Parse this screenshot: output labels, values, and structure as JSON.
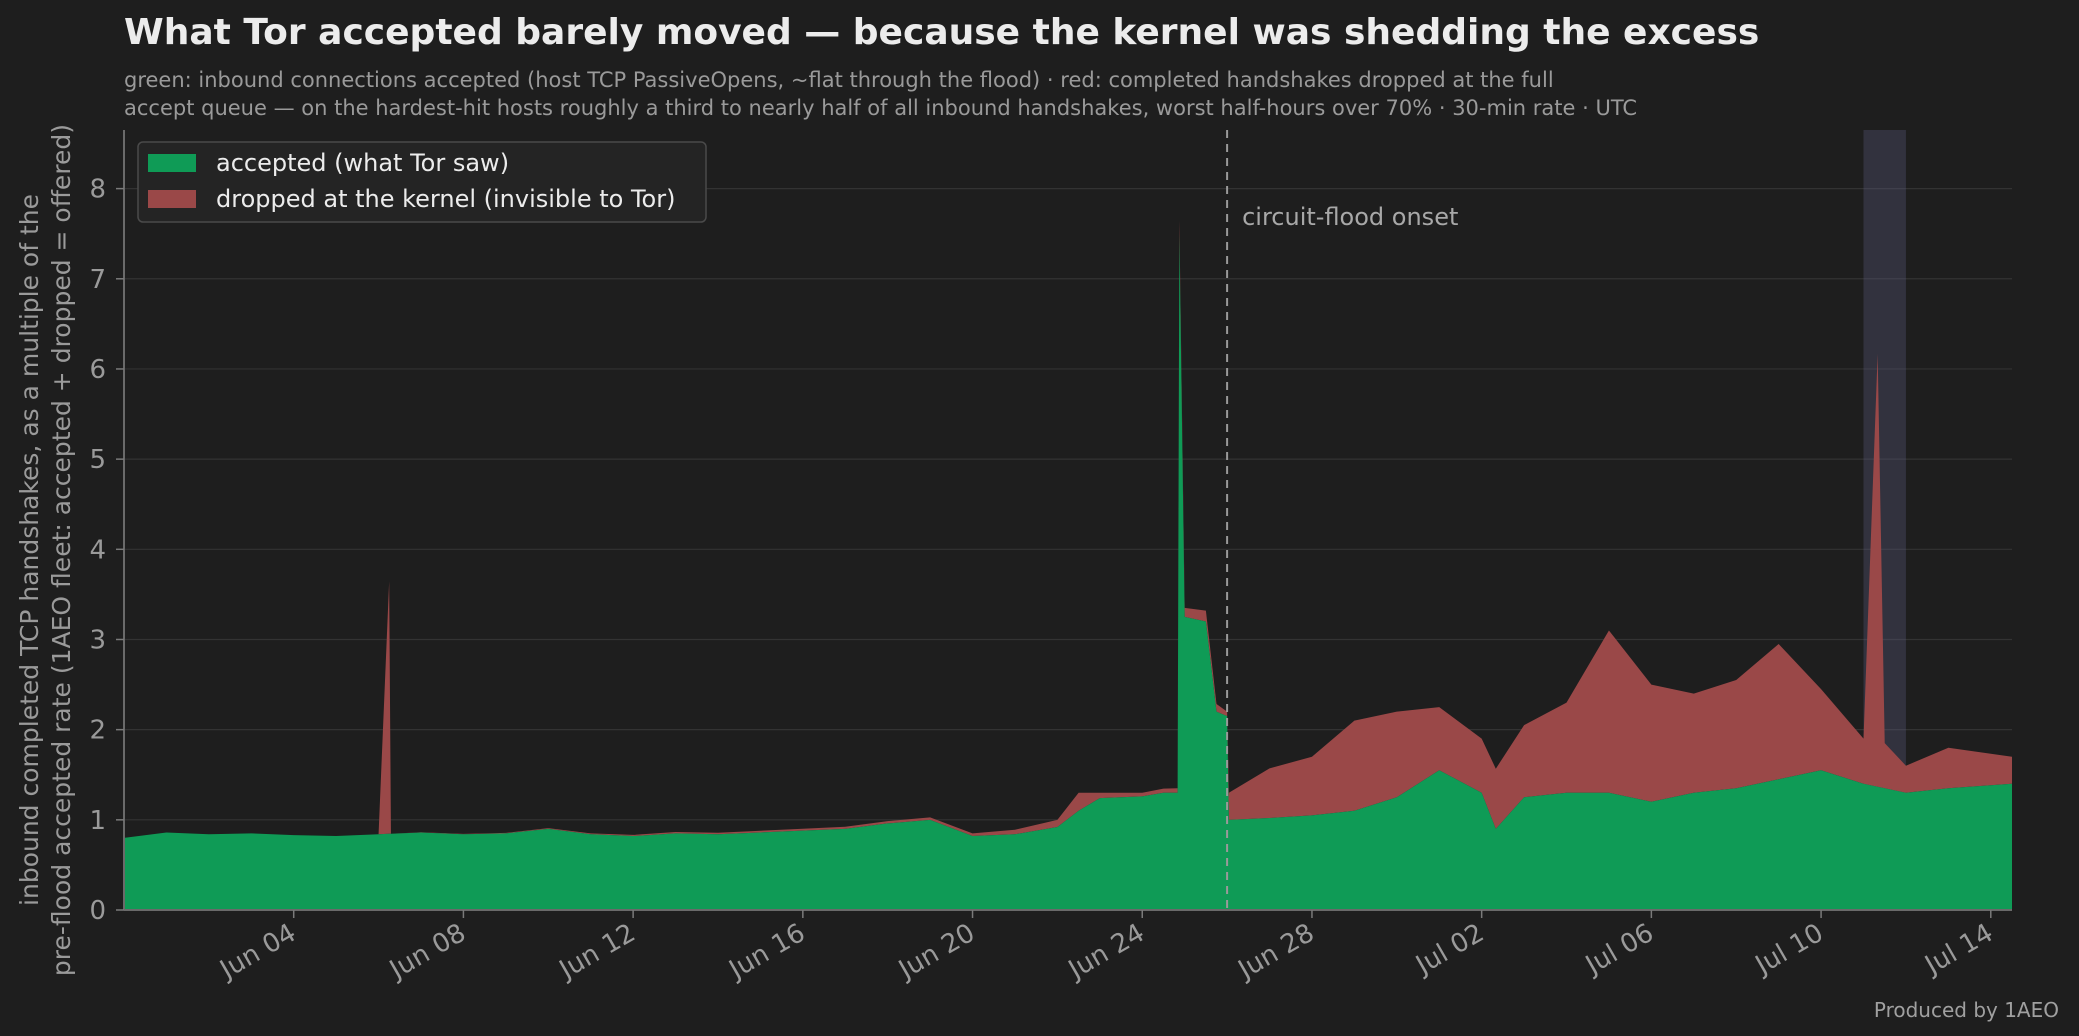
{
  "chart_data": {
    "type": "area",
    "title": "What Tor accepted barely moved — because the kernel was shedding the excess",
    "subtitle": "green: inbound connections accepted (host TCP PassiveOpens, ~flat through the flood) · red: completed handshakes dropped at the full\naccept queue — on the hardest-hit hosts roughly a third to nearly half of all inbound handshakes, worst half-hours over 70% · 30-min rate · UTC",
    "ylabel_line1": "inbound completed TCP handshakes, as a multiple of the",
    "ylabel_line2": "pre-flood accepted rate  (1AEO fleet: accepted + dropped = offered)",
    "xlabel": "",
    "x_axis": {
      "type": "date",
      "min": "2025-05-31",
      "max": "2025-07-14T12:00"
    },
    "ylim": [
      0,
      8.65
    ],
    "yticks": [
      0,
      1,
      2,
      3,
      4,
      5,
      6,
      7,
      8
    ],
    "xticks": [
      "2025-06-04",
      "2025-06-08",
      "2025-06-12",
      "2025-06-16",
      "2025-06-20",
      "2025-06-24",
      "2025-06-28",
      "2025-07-02",
      "2025-07-06",
      "2025-07-10",
      "2025-07-14"
    ],
    "xtick_labels": [
      "Jun 04",
      "Jun 08",
      "Jun 12",
      "Jun 16",
      "Jun 20",
      "Jun 24",
      "Jun 28",
      "Jul 02",
      "Jul 06",
      "Jul 10",
      "Jul 14"
    ],
    "grid": true,
    "legend_position": "top-left",
    "series": [
      {
        "name": "accepted (what Tor saw)",
        "color": "#0f9b56",
        "points": [
          [
            "2025-05-31T00:00",
            0.8
          ],
          [
            "2025-06-01T00:00",
            0.86
          ],
          [
            "2025-06-02T00:00",
            0.84
          ],
          [
            "2025-06-03T00:00",
            0.85
          ],
          [
            "2025-06-04T00:00",
            0.83
          ],
          [
            "2025-06-05T00:00",
            0.82
          ],
          [
            "2025-06-06T00:00",
            0.84
          ],
          [
            "2025-06-07T00:00",
            0.86
          ],
          [
            "2025-06-08T00:00",
            0.84
          ],
          [
            "2025-06-09T00:00",
            0.85
          ],
          [
            "2025-06-10T00:00",
            0.9
          ],
          [
            "2025-06-11T00:00",
            0.84
          ],
          [
            "2025-06-12T00:00",
            0.82
          ],
          [
            "2025-06-13T00:00",
            0.85
          ],
          [
            "2025-06-14T00:00",
            0.84
          ],
          [
            "2025-06-15T00:00",
            0.86
          ],
          [
            "2025-06-16T00:00",
            0.88
          ],
          [
            "2025-06-17T00:00",
            0.9
          ],
          [
            "2025-06-18T00:00",
            0.96
          ],
          [
            "2025-06-19T00:00",
            1.0
          ],
          [
            "2025-06-20T00:00",
            0.82
          ],
          [
            "2025-06-21T00:00",
            0.84
          ],
          [
            "2025-06-22T00:00",
            0.92
          ],
          [
            "2025-06-22T12:00",
            1.1
          ],
          [
            "2025-06-23T00:00",
            1.24
          ],
          [
            "2025-06-24T00:00",
            1.26
          ],
          [
            "2025-06-24T12:00",
            1.3
          ],
          [
            "2025-06-24T20:00",
            1.3
          ],
          [
            "2025-06-24T21:00",
            7.5
          ],
          [
            "2025-06-25T00:00",
            3.25
          ],
          [
            "2025-06-25T12:00",
            3.2
          ],
          [
            "2025-06-25T18:00",
            2.2
          ],
          [
            "2025-06-26T00:00",
            2.15
          ],
          [
            "2025-06-26T01:00",
            1.0
          ],
          [
            "2025-06-27T00:00",
            1.02
          ],
          [
            "2025-06-28T00:00",
            1.05
          ],
          [
            "2025-06-29T00:00",
            1.1
          ],
          [
            "2025-06-30T00:00",
            1.25
          ],
          [
            "2025-07-01T00:00",
            1.55
          ],
          [
            "2025-07-02T00:00",
            1.3
          ],
          [
            "2025-07-02T08:00",
            0.9
          ],
          [
            "2025-07-03T00:00",
            1.25
          ],
          [
            "2025-07-04T00:00",
            1.3
          ],
          [
            "2025-07-05T00:00",
            1.3
          ],
          [
            "2025-07-06T00:00",
            1.2
          ],
          [
            "2025-07-07T00:00",
            1.3
          ],
          [
            "2025-07-08T00:00",
            1.35
          ],
          [
            "2025-07-09T00:00",
            1.45
          ],
          [
            "2025-07-10T00:00",
            1.55
          ],
          [
            "2025-07-11T00:00",
            1.4
          ],
          [
            "2025-07-12T00:00",
            1.3
          ],
          [
            "2025-07-13T00:00",
            1.35
          ],
          [
            "2025-07-14T12:00",
            1.4
          ]
        ]
      },
      {
        "name": "dropped at the kernel (invisible to Tor)",
        "color": "#9a4848",
        "points": [
          [
            "2025-05-31T00:00",
            0.0
          ],
          [
            "2025-06-06T00:00",
            0.0
          ],
          [
            "2025-06-06T06:00",
            2.8
          ],
          [
            "2025-06-06T07:00",
            0.0
          ],
          [
            "2025-06-20T00:00",
            0.03
          ],
          [
            "2025-06-21T00:00",
            0.05
          ],
          [
            "2025-06-22T00:00",
            0.08
          ],
          [
            "2025-06-22T12:00",
            0.2
          ],
          [
            "2025-06-23T00:00",
            0.06
          ],
          [
            "2025-06-24T00:00",
            0.04
          ],
          [
            "2025-06-24T20:00",
            0.05
          ],
          [
            "2025-06-24T21:00",
            0.15
          ],
          [
            "2025-06-25T00:00",
            0.1
          ],
          [
            "2025-06-25T12:00",
            0.12
          ],
          [
            "2025-06-26T00:00",
            0.05
          ],
          [
            "2025-06-26T01:00",
            0.3
          ],
          [
            "2025-06-27T00:00",
            0.55
          ],
          [
            "2025-06-28T00:00",
            0.65
          ],
          [
            "2025-06-29T00:00",
            1.0
          ],
          [
            "2025-06-30T00:00",
            0.95
          ],
          [
            "2025-07-01T00:00",
            0.7
          ],
          [
            "2025-07-02T00:00",
            0.6
          ],
          [
            "2025-07-03T00:00",
            0.8
          ],
          [
            "2025-07-04T00:00",
            1.0
          ],
          [
            "2025-07-05T00:00",
            1.8
          ],
          [
            "2025-07-06T00:00",
            1.3
          ],
          [
            "2025-07-07T00:00",
            1.1
          ],
          [
            "2025-07-08T00:00",
            1.2
          ],
          [
            "2025-07-09T00:00",
            1.5
          ],
          [
            "2025-07-10T00:00",
            0.9
          ],
          [
            "2025-07-11T00:00",
            0.5
          ],
          [
            "2025-07-11T08:00",
            4.8
          ],
          [
            "2025-07-11T12:00",
            0.5
          ],
          [
            "2025-07-12T00:00",
            0.3
          ],
          [
            "2025-07-13T00:00",
            0.45
          ],
          [
            "2025-07-14T12:00",
            0.3
          ]
        ]
      }
    ],
    "annotations": [
      {
        "type": "vline",
        "x": "2025-06-26T00:00",
        "label": "circuit-flood onset",
        "style": "dashed"
      },
      {
        "type": "vspan",
        "x0": "2025-07-11T00:00",
        "x1": "2025-07-12T00:00"
      }
    ],
    "footer": "Produced by 1AEO"
  }
}
